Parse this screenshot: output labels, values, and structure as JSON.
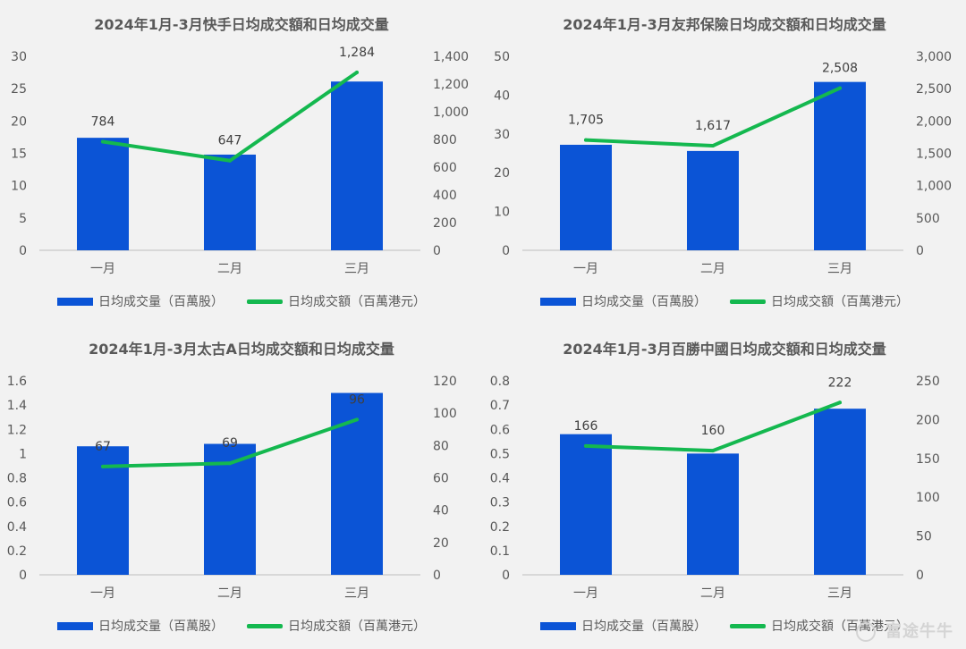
{
  "colors": {
    "bar": "#0b54d6",
    "line": "#14b84f",
    "text": "#595959",
    "axis": "#bfbfbf"
  },
  "watermark": "富途牛牛",
  "chart_data": [
    {
      "type": "bar+line",
      "title": "2024年1月-3月快手日均成交額和日均成交量",
      "categories": [
        "一月",
        "二月",
        "三月"
      ],
      "series": [
        {
          "name": "日均成交量（百萬股）",
          "type": "bar",
          "axis": "left",
          "values": [
            17.4,
            14.8,
            26.1
          ]
        },
        {
          "name": "日均成交額（百萬港元）",
          "type": "line",
          "axis": "right",
          "values": [
            784,
            647,
            1284
          ],
          "labels": [
            "784",
            "647",
            "1,284"
          ]
        }
      ],
      "y_left": {
        "min": 0,
        "max": 30,
        "ticks": [
          "0",
          "5",
          "10",
          "15",
          "20",
          "25",
          "30"
        ]
      },
      "y_right": {
        "min": 0,
        "max": 1400,
        "ticks": [
          "0",
          "200",
          "400",
          "600",
          "800",
          "1,000",
          "1,200",
          "1,400"
        ]
      },
      "legend": "bottom"
    },
    {
      "type": "bar+line",
      "title": "2024年1月-3月友邦保險日均成交額和日均成交量",
      "categories": [
        "一月",
        "二月",
        "三月"
      ],
      "series": [
        {
          "name": "日均成交量（百萬股）",
          "type": "bar",
          "axis": "left",
          "values": [
            27.2,
            25.6,
            43.4
          ]
        },
        {
          "name": "日均成交額（百萬港元）",
          "type": "line",
          "axis": "right",
          "values": [
            1705,
            1617,
            2508
          ],
          "labels": [
            "1,705",
            "1,617",
            "2,508"
          ]
        }
      ],
      "y_left": {
        "min": 0,
        "max": 50,
        "ticks": [
          "0",
          "10",
          "20",
          "30",
          "40",
          "50"
        ]
      },
      "y_right": {
        "min": 0,
        "max": 3000,
        "ticks": [
          "0",
          "500",
          "1,000",
          "1,500",
          "2,000",
          "2,500",
          "3,000"
        ]
      },
      "legend": "bottom"
    },
    {
      "type": "bar+line",
      "title": "2024年1月-3月太古A日均成交額和日均成交量",
      "categories": [
        "一月",
        "二月",
        "三月"
      ],
      "series": [
        {
          "name": "日均成交量（百萬股）",
          "type": "bar",
          "axis": "left",
          "values": [
            1.06,
            1.08,
            1.5
          ]
        },
        {
          "name": "日均成交額（百萬港元）",
          "type": "line",
          "axis": "right",
          "values": [
            67,
            69,
            96
          ],
          "labels": [
            "67",
            "69",
            "96"
          ]
        }
      ],
      "y_left": {
        "min": 0,
        "max": 1.6,
        "ticks": [
          "0",
          "0.2",
          "0.4",
          "0.6",
          "0.8",
          "1",
          "1.2",
          "1.4",
          "1.6"
        ]
      },
      "y_right": {
        "min": 0,
        "max": 120,
        "ticks": [
          "0",
          "20",
          "40",
          "60",
          "80",
          "100",
          "120"
        ]
      },
      "legend": "bottom"
    },
    {
      "type": "bar+line",
      "title": "2024年1月-3月百勝中國日均成交額和日均成交量",
      "categories": [
        "一月",
        "二月",
        "三月"
      ],
      "series": [
        {
          "name": "日均成交量（百萬股）",
          "type": "bar",
          "axis": "left",
          "values": [
            0.58,
            0.5,
            0.685
          ]
        },
        {
          "name": "日均成交額（百萬港元）",
          "type": "line",
          "axis": "right",
          "values": [
            166,
            160,
            222
          ],
          "labels": [
            "166",
            "160",
            "222"
          ]
        }
      ],
      "y_left": {
        "min": 0,
        "max": 0.8,
        "ticks": [
          "0",
          "0.1",
          "0.2",
          "0.3",
          "0.4",
          "0.5",
          "0.6",
          "0.7",
          "0.8"
        ]
      },
      "y_right": {
        "min": 0,
        "max": 250,
        "ticks": [
          "0",
          "50",
          "100",
          "150",
          "200",
          "250"
        ]
      },
      "legend": "bottom"
    }
  ]
}
